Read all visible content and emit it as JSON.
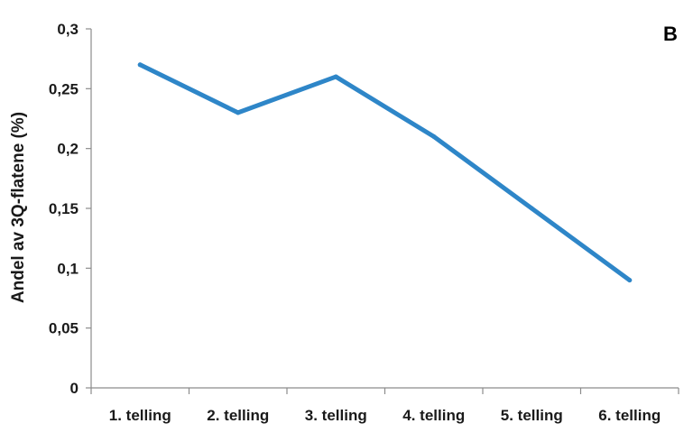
{
  "chart_data": {
    "type": "line",
    "panel_label": "B",
    "ylabel": "Andel av 3Q-flatene (%)",
    "xlabel": "",
    "categories": [
      "1. telling",
      "2. telling",
      "3. telling",
      "4. telling",
      "5. telling",
      "6. telling"
    ],
    "series": [
      {
        "values": [
          0.27,
          0.23,
          0.26,
          0.21,
          0.15,
          0.09
        ],
        "color": "#2E86C8"
      }
    ],
    "ylim": [
      0,
      0.3
    ],
    "yticks": [
      0,
      0.05,
      0.1,
      0.15,
      0.2,
      0.25,
      0.3
    ],
    "ytick_labels": [
      "0",
      "0,05",
      "0,1",
      "0,15",
      "0,2",
      "0,25",
      "0,3"
    ],
    "grid": false,
    "legend": "none"
  }
}
